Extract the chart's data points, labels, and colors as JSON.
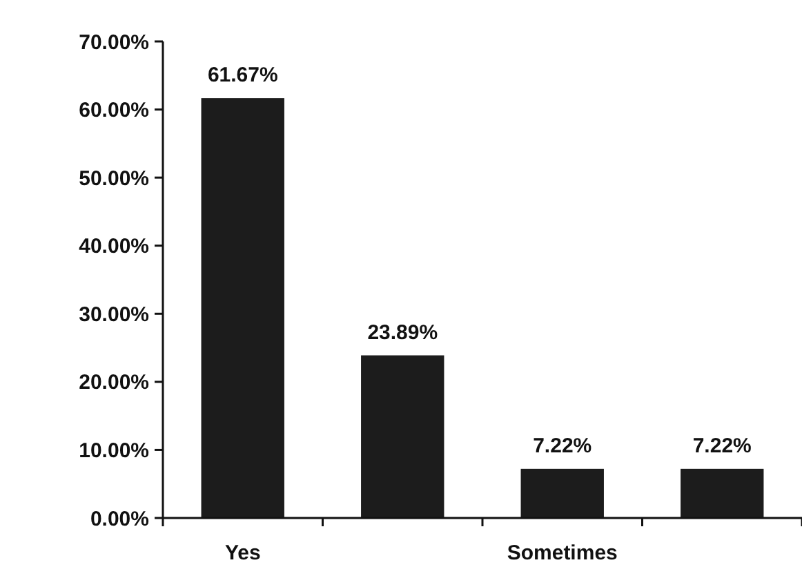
{
  "chart_data": {
    "type": "bar",
    "categories": [
      "Yes",
      null,
      "Sometimes",
      null
    ],
    "values": [
      61.67,
      23.89,
      7.22,
      7.22
    ],
    "value_labels": [
      "61.67%",
      "23.89%",
      "7.22%",
      "7.22%"
    ],
    "color": "#1c1c1c",
    "ylim": [
      0,
      70
    ],
    "yticks": [
      {
        "value": 0,
        "label": "0.00%"
      },
      {
        "value": 10,
        "label": "10.00%"
      },
      {
        "value": 20,
        "label": "20.00%"
      },
      {
        "value": 30,
        "label": "30.00%"
      },
      {
        "value": 40,
        "label": "40.00%"
      },
      {
        "value": 50,
        "label": "50.00%"
      },
      {
        "value": 60,
        "label": "60.00%"
      },
      {
        "value": 70,
        "label": "70.00%"
      }
    ],
    "grid": false
  }
}
